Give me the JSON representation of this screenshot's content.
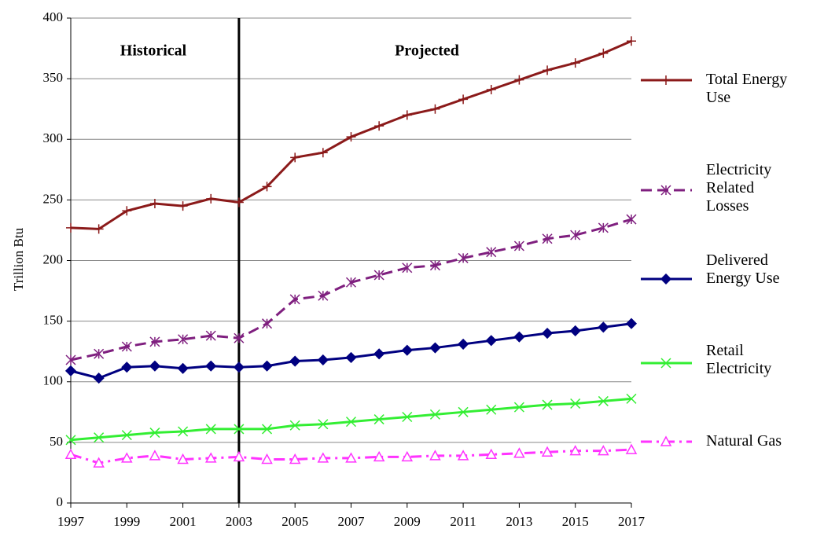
{
  "chart_data": {
    "type": "line",
    "y_label": "Trillion Btu",
    "annotations": [
      "Historical",
      "Projected"
    ],
    "divider_x": 2003,
    "x": [
      1997,
      1998,
      1999,
      2000,
      2001,
      2002,
      2003,
      2004,
      2005,
      2006,
      2007,
      2008,
      2009,
      2010,
      2011,
      2012,
      2013,
      2014,
      2015,
      2016,
      2017
    ],
    "series": [
      {
        "name": "Total Energy Use",
        "color": "#8b1a1a",
        "marker": "plus",
        "dash": "solid",
        "values": [
          227,
          226,
          241,
          247,
          245,
          251,
          248,
          261,
          285,
          289,
          302,
          311,
          320,
          325,
          333,
          341,
          349,
          357,
          363,
          371,
          381
        ]
      },
      {
        "name": "Electricity Related Losses",
        "color": "#7f1f7f",
        "marker": "asterisk",
        "dash": "dash",
        "values": [
          118,
          123,
          129,
          133,
          135,
          138,
          136,
          148,
          168,
          171,
          182,
          188,
          194,
          196,
          202,
          207,
          212,
          218,
          221,
          227,
          234
        ]
      },
      {
        "name": "Delivered Energy Use",
        "color": "#000080",
        "marker": "diamond",
        "dash": "solid",
        "values": [
          109,
          103,
          112,
          113,
          111,
          113,
          112,
          113,
          117,
          118,
          120,
          123,
          126,
          128,
          131,
          134,
          137,
          140,
          142,
          145,
          148
        ]
      },
      {
        "name": "Retail Electricity",
        "color": "#33ee33",
        "marker": "x",
        "dash": "solid",
        "values": [
          52,
          54,
          56,
          58,
          59,
          61,
          61,
          61,
          64,
          65,
          67,
          69,
          71,
          73,
          75,
          77,
          79,
          81,
          82,
          84,
          86
        ]
      },
      {
        "name": "Natural Gas",
        "color": "#ff33ff",
        "marker": "triangle",
        "dash": "dashdot",
        "values": [
          40,
          33,
          37,
          39,
          36,
          37,
          38,
          36,
          36,
          37,
          37,
          38,
          38,
          39,
          39,
          40,
          41,
          42,
          43,
          43,
          44
        ]
      }
    ],
    "xlim": [
      1997,
      2017
    ],
    "xticks": [
      1997,
      1999,
      2001,
      2003,
      2005,
      2007,
      2009,
      2011,
      2013,
      2015,
      2017
    ],
    "ylim": [
      0,
      400
    ],
    "yticks": [
      0,
      50,
      100,
      150,
      200,
      250,
      300,
      350,
      400
    ],
    "grid": true,
    "legend": "right"
  }
}
